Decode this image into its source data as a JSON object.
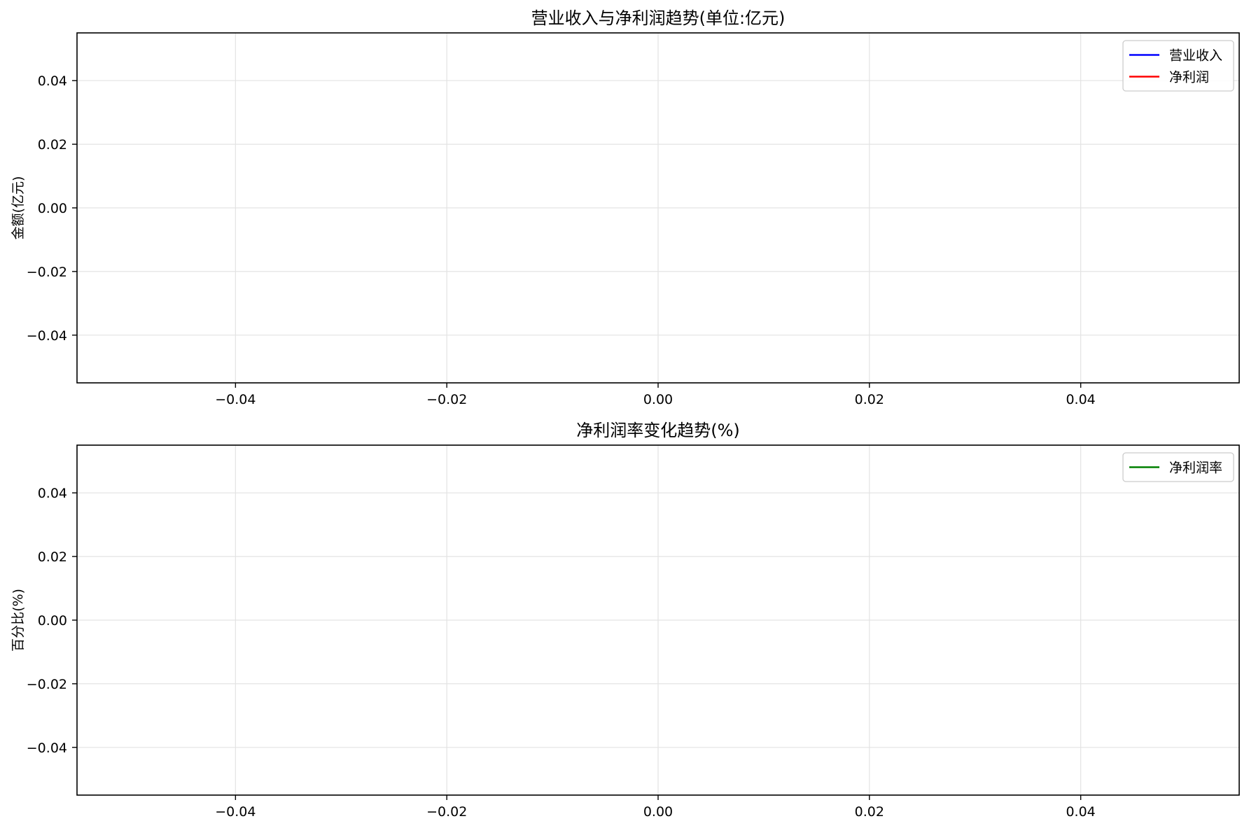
{
  "chart_data": [
    {
      "type": "line",
      "title": "营业收入与净利润趋势(单位:亿元)",
      "xlabel": "",
      "ylabel": "金额(亿元)",
      "xlim": [
        -0.055,
        0.055
      ],
      "ylim": [
        -0.055,
        0.055
      ],
      "xticks": [
        -0.04,
        -0.02,
        0.0,
        0.02,
        0.04
      ],
      "xtick_labels": [
        "−0.04",
        "−0.02",
        "0.00",
        "0.02",
        "0.04"
      ],
      "yticks": [
        0.04,
        0.02,
        0.0,
        -0.02,
        -0.04
      ],
      "ytick_labels": [
        "0.04",
        "0.02",
        "0.00",
        "−0.02",
        "−0.04"
      ],
      "grid": true,
      "legend_position": "top-right",
      "series": [
        {
          "name": "营业收入",
          "color": "#0000ff",
          "x": [],
          "values": []
        },
        {
          "name": "净利润",
          "color": "#ff0000",
          "x": [],
          "values": []
        }
      ]
    },
    {
      "type": "line",
      "title": "净利润率变化趋势(%)",
      "xlabel": "",
      "ylabel": "百分比(%)",
      "xlim": [
        -0.055,
        0.055
      ],
      "ylim": [
        -0.055,
        0.055
      ],
      "xticks": [
        -0.04,
        -0.02,
        0.0,
        0.02,
        0.04
      ],
      "xtick_labels": [
        "−0.04",
        "−0.02",
        "0.00",
        "0.02",
        "0.04"
      ],
      "yticks": [
        0.04,
        0.02,
        0.0,
        -0.02,
        -0.04
      ],
      "ytick_labels": [
        "0.04",
        "0.02",
        "0.00",
        "−0.02",
        "−0.04"
      ],
      "grid": true,
      "legend_position": "top-right",
      "series": [
        {
          "name": "净利润率",
          "color": "#008000",
          "x": [],
          "values": []
        }
      ]
    }
  ]
}
